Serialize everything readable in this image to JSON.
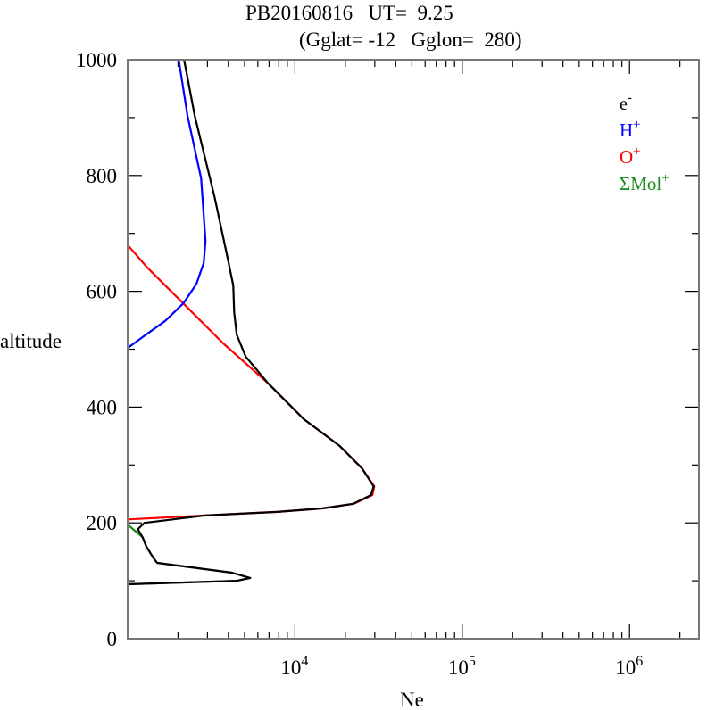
{
  "chart_data": {
    "type": "line",
    "title": "PB20160816   UT=  9.25",
    "subtitle": "(Gglat= -12   Gglon=  280)",
    "xlabel": "Ne",
    "ylabel": "altitude",
    "xscale": "log",
    "xlim": [
      1000,
      2600000
    ],
    "ylim": [
      0,
      1000
    ],
    "x_tick_labels": [
      {
        "value": 10000,
        "base": "10",
        "exp": "4"
      },
      {
        "value": 100000,
        "base": "10",
        "exp": "5"
      },
      {
        "value": 1000000,
        "base": "10",
        "exp": "6"
      }
    ],
    "y_ticks": [
      0,
      200,
      400,
      600,
      800,
      1000
    ],
    "y_tick_labels": [
      "0",
      "200",
      "400",
      "600",
      "800",
      "1000"
    ],
    "grid": false,
    "legend_placement": "top-right",
    "series": [
      {
        "name": "e-",
        "label": "e",
        "sup": "-",
        "color": "#000000",
        "points": [
          [
            2175,
            1000
          ],
          [
            2520,
            903
          ],
          [
            3300,
            764
          ],
          [
            3970,
            656
          ],
          [
            4280,
            610
          ],
          [
            4330,
            564
          ],
          [
            4490,
            525
          ],
          [
            5080,
            487
          ],
          [
            6920,
            441
          ],
          [
            11300,
            379
          ],
          [
            18500,
            333
          ],
          [
            25200,
            294
          ],
          [
            29500,
            263
          ],
          [
            28500,
            248
          ],
          [
            22300,
            233
          ],
          [
            14500,
            225
          ],
          [
            7820,
            219
          ],
          [
            2920,
            213
          ],
          [
            1260,
            200
          ],
          [
            1150,
            189
          ],
          [
            1230,
            175
          ],
          [
            1290,
            160
          ],
          [
            1420,
            140
          ],
          [
            1500,
            131
          ],
          [
            4200,
            114
          ],
          [
            5400,
            105
          ],
          [
            4500,
            100
          ],
          [
            1000,
            94
          ]
        ]
      },
      {
        "name": "H+",
        "label": "H",
        "sup": "+",
        "color": "#0000ff",
        "points": [
          [
            2020,
            1000
          ],
          [
            2280,
            903
          ],
          [
            2750,
            795
          ],
          [
            2920,
            687
          ],
          [
            2850,
            649
          ],
          [
            2580,
            613
          ],
          [
            2150,
            579
          ],
          [
            1680,
            549
          ],
          [
            1230,
            521
          ],
          [
            1000,
            502
          ]
        ]
      },
      {
        "name": "O+",
        "label": "O",
        "sup": "+",
        "color": "#ff0000",
        "points": [
          [
            1000,
            680
          ],
          [
            1310,
            641
          ],
          [
            2150,
            579
          ],
          [
            3730,
            510
          ],
          [
            6920,
            441
          ],
          [
            11300,
            379
          ],
          [
            18500,
            333
          ],
          [
            25200,
            294
          ],
          [
            29800,
            263
          ],
          [
            29000,
            248
          ],
          [
            22500,
            233
          ],
          [
            14500,
            225
          ],
          [
            7820,
            219
          ],
          [
            2920,
            213
          ],
          [
            1000,
            206
          ]
        ]
      },
      {
        "name": "ΣMol+",
        "label": "ΣMol",
        "sup": "+",
        "color": "#1a8a1a",
        "points": [
          [
            1000,
            197
          ],
          [
            1120,
            185
          ],
          [
            1230,
            175
          ],
          [
            1290,
            160
          ],
          [
            1420,
            140
          ],
          [
            1500,
            131
          ],
          [
            4200,
            114
          ],
          [
            5400,
            105
          ],
          [
            4500,
            100
          ],
          [
            1000,
            94
          ]
        ]
      }
    ]
  }
}
